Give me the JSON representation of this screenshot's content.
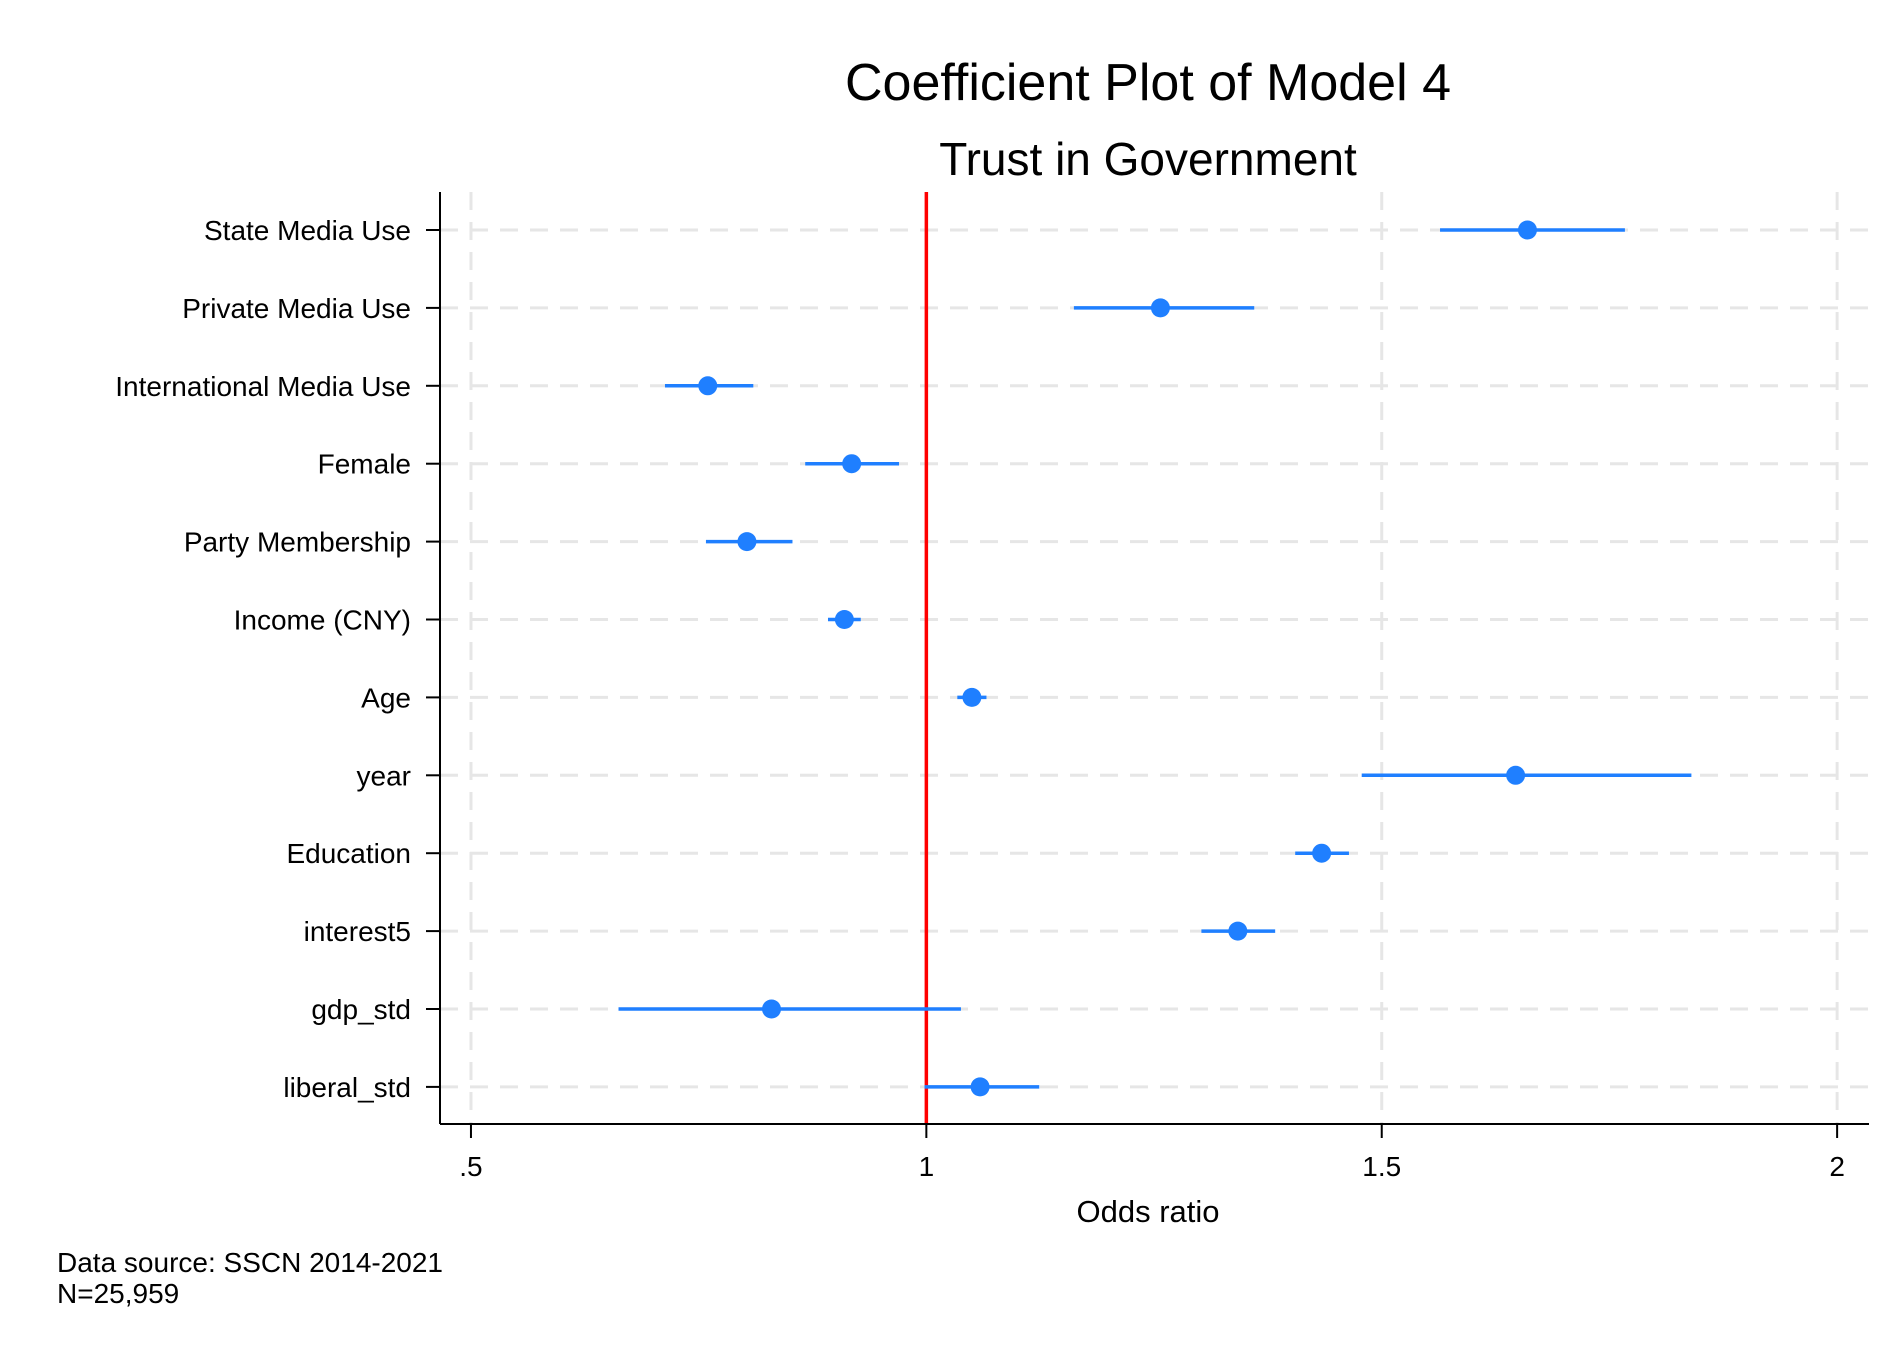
{
  "chart_data": {
    "type": "scatter",
    "title": "Coefficient Plot of Model 4",
    "subtitle": "Trust in Government",
    "xlabel": "Odds ratio",
    "ylabel": "",
    "xlim": [
      0.466,
      2.035
    ],
    "xticks": [
      0.5,
      1,
      1.5,
      2
    ],
    "xtick_labels": [
      ".5",
      "1",
      "1.5",
      "2"
    ],
    "reference_line": 1,
    "grid": true,
    "legend": "none",
    "point_color": "#1f7fff",
    "reference_color": "#ff0000",
    "grid_color": "#e6e6e6",
    "variables": [
      {
        "label": "State Media Use",
        "estimate": 1.66,
        "ci_low": 1.564,
        "ci_high": 1.767
      },
      {
        "label": "Private Media Use",
        "estimate": 1.257,
        "ci_low": 1.162,
        "ci_high": 1.36
      },
      {
        "label": "International Media Use",
        "estimate": 0.76,
        "ci_low": 0.713,
        "ci_high": 0.81
      },
      {
        "label": "Female",
        "estimate": 0.918,
        "ci_low": 0.867,
        "ci_high": 0.97
      },
      {
        "label": "Party Membership",
        "estimate": 0.803,
        "ci_low": 0.758,
        "ci_high": 0.853
      },
      {
        "label": "Income (CNY)",
        "estimate": 0.91,
        "ci_low": 0.892,
        "ci_high": 0.928
      },
      {
        "label": "Age",
        "estimate": 1.05,
        "ci_low": 1.034,
        "ci_high": 1.066
      },
      {
        "label": "year",
        "estimate": 1.647,
        "ci_low": 1.478,
        "ci_high": 1.84
      },
      {
        "label": "Education",
        "estimate": 1.434,
        "ci_low": 1.405,
        "ci_high": 1.464
      },
      {
        "label": "interest5",
        "estimate": 1.342,
        "ci_low": 1.302,
        "ci_high": 1.383
      },
      {
        "label": "gdp_std",
        "estimate": 0.83,
        "ci_low": 0.662,
        "ci_high": 1.038
      },
      {
        "label": "liberal_std",
        "estimate": 1.059,
        "ci_low": 0.998,
        "ci_high": 1.124
      }
    ]
  },
  "notes": {
    "source": "Data source: SSCN 2014-2021",
    "n": "N=25,959"
  }
}
